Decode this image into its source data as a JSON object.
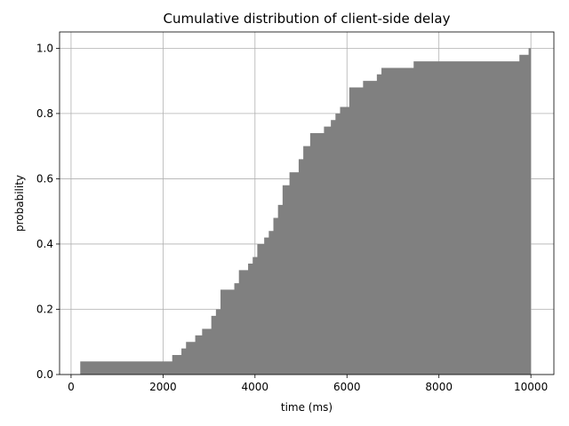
{
  "chart_data": {
    "type": "area",
    "title": "Cumulative distribution of client-side delay",
    "xlabel": "time (ms)",
    "ylabel": "probability",
    "xlim": [
      -250,
      10500
    ],
    "ylim": [
      0,
      1.05
    ],
    "xticks": [
      0,
      2000,
      4000,
      6000,
      8000,
      10000
    ],
    "yticks": [
      0.0,
      0.2,
      0.4,
      0.6,
      0.8,
      1.0
    ],
    "xtick_labels": [
      "0",
      "2000",
      "4000",
      "6000",
      "8000",
      "10000"
    ],
    "ytick_labels": [
      "0.0",
      "0.2",
      "0.4",
      "0.6",
      "0.8",
      "1.0"
    ],
    "grid": true,
    "fill_color": "#808080",
    "x": [
      200,
      2000,
      2200,
      2400,
      2500,
      2700,
      2850,
      3050,
      3150,
      3250,
      3550,
      3650,
      3850,
      3950,
      4050,
      4200,
      4300,
      4400,
      4500,
      4600,
      4650,
      4750,
      4950,
      5050,
      5200,
      5500,
      5650,
      5750,
      5850,
      6050,
      6350,
      6650,
      6750,
      7450,
      9750,
      9950,
      10000
    ],
    "y": [
      0.04,
      0.04,
      0.06,
      0.08,
      0.1,
      0.12,
      0.14,
      0.18,
      0.2,
      0.26,
      0.28,
      0.32,
      0.34,
      0.36,
      0.4,
      0.42,
      0.44,
      0.48,
      0.52,
      0.58,
      0.58,
      0.62,
      0.66,
      0.7,
      0.74,
      0.76,
      0.78,
      0.8,
      0.82,
      0.88,
      0.9,
      0.92,
      0.94,
      0.96,
      0.98,
      1.0,
      1.0
    ]
  }
}
